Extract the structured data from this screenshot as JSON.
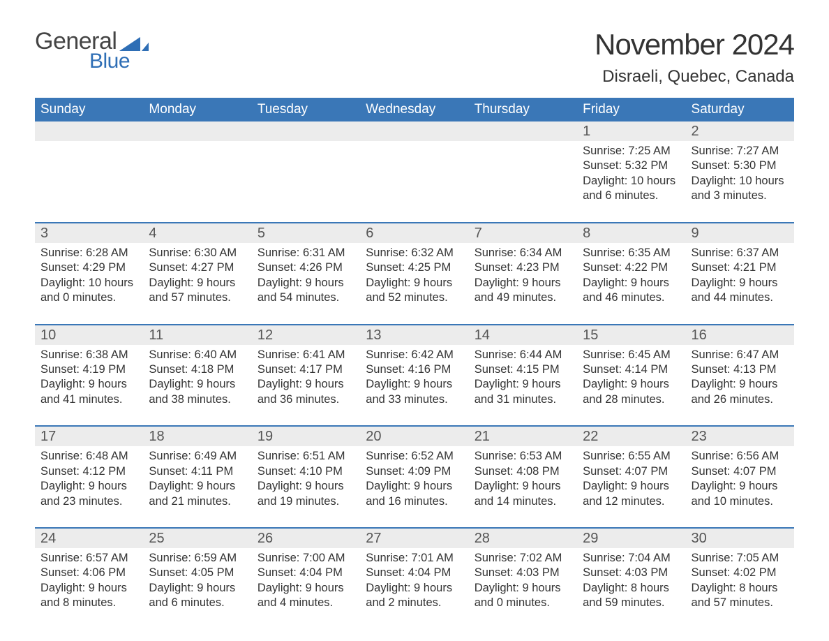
{
  "logo": {
    "word1": "General",
    "word2": "Blue",
    "brand_color": "#2e6eb5"
  },
  "title": "November 2024",
  "location": "Disraeli, Quebec, Canada",
  "colors": {
    "header_bg": "#3a77b7",
    "header_text": "#ffffff",
    "daynum_bg": "#ececec",
    "daynum_text": "#555555",
    "body_text": "#333333",
    "rule": "#3a77b7",
    "page_bg": "#ffffff"
  },
  "typography": {
    "title_fontsize": 42,
    "location_fontsize": 24,
    "dow_fontsize": 19,
    "daynum_fontsize": 20,
    "detail_fontsize": 16.5,
    "font_family": "Arial"
  },
  "days_of_week": [
    "Sunday",
    "Monday",
    "Tuesday",
    "Wednesday",
    "Thursday",
    "Friday",
    "Saturday"
  ],
  "weeks": [
    [
      null,
      null,
      null,
      null,
      null,
      {
        "n": "1",
        "sunrise": "7:25 AM",
        "sunset": "5:32 PM",
        "daylight": "10 hours and 6 minutes."
      },
      {
        "n": "2",
        "sunrise": "7:27 AM",
        "sunset": "5:30 PM",
        "daylight": "10 hours and 3 minutes."
      }
    ],
    [
      {
        "n": "3",
        "sunrise": "6:28 AM",
        "sunset": "4:29 PM",
        "daylight": "10 hours and 0 minutes."
      },
      {
        "n": "4",
        "sunrise": "6:30 AM",
        "sunset": "4:27 PM",
        "daylight": "9 hours and 57 minutes."
      },
      {
        "n": "5",
        "sunrise": "6:31 AM",
        "sunset": "4:26 PM",
        "daylight": "9 hours and 54 minutes."
      },
      {
        "n": "6",
        "sunrise": "6:32 AM",
        "sunset": "4:25 PM",
        "daylight": "9 hours and 52 minutes."
      },
      {
        "n": "7",
        "sunrise": "6:34 AM",
        "sunset": "4:23 PM",
        "daylight": "9 hours and 49 minutes."
      },
      {
        "n": "8",
        "sunrise": "6:35 AM",
        "sunset": "4:22 PM",
        "daylight": "9 hours and 46 minutes."
      },
      {
        "n": "9",
        "sunrise": "6:37 AM",
        "sunset": "4:21 PM",
        "daylight": "9 hours and 44 minutes."
      }
    ],
    [
      {
        "n": "10",
        "sunrise": "6:38 AM",
        "sunset": "4:19 PM",
        "daylight": "9 hours and 41 minutes."
      },
      {
        "n": "11",
        "sunrise": "6:40 AM",
        "sunset": "4:18 PM",
        "daylight": "9 hours and 38 minutes."
      },
      {
        "n": "12",
        "sunrise": "6:41 AM",
        "sunset": "4:17 PM",
        "daylight": "9 hours and 36 minutes."
      },
      {
        "n": "13",
        "sunrise": "6:42 AM",
        "sunset": "4:16 PM",
        "daylight": "9 hours and 33 minutes."
      },
      {
        "n": "14",
        "sunrise": "6:44 AM",
        "sunset": "4:15 PM",
        "daylight": "9 hours and 31 minutes."
      },
      {
        "n": "15",
        "sunrise": "6:45 AM",
        "sunset": "4:14 PM",
        "daylight": "9 hours and 28 minutes."
      },
      {
        "n": "16",
        "sunrise": "6:47 AM",
        "sunset": "4:13 PM",
        "daylight": "9 hours and 26 minutes."
      }
    ],
    [
      {
        "n": "17",
        "sunrise": "6:48 AM",
        "sunset": "4:12 PM",
        "daylight": "9 hours and 23 minutes."
      },
      {
        "n": "18",
        "sunrise": "6:49 AM",
        "sunset": "4:11 PM",
        "daylight": "9 hours and 21 minutes."
      },
      {
        "n": "19",
        "sunrise": "6:51 AM",
        "sunset": "4:10 PM",
        "daylight": "9 hours and 19 minutes."
      },
      {
        "n": "20",
        "sunrise": "6:52 AM",
        "sunset": "4:09 PM",
        "daylight": "9 hours and 16 minutes."
      },
      {
        "n": "21",
        "sunrise": "6:53 AM",
        "sunset": "4:08 PM",
        "daylight": "9 hours and 14 minutes."
      },
      {
        "n": "22",
        "sunrise": "6:55 AM",
        "sunset": "4:07 PM",
        "daylight": "9 hours and 12 minutes."
      },
      {
        "n": "23",
        "sunrise": "6:56 AM",
        "sunset": "4:07 PM",
        "daylight": "9 hours and 10 minutes."
      }
    ],
    [
      {
        "n": "24",
        "sunrise": "6:57 AM",
        "sunset": "4:06 PM",
        "daylight": "9 hours and 8 minutes."
      },
      {
        "n": "25",
        "sunrise": "6:59 AM",
        "sunset": "4:05 PM",
        "daylight": "9 hours and 6 minutes."
      },
      {
        "n": "26",
        "sunrise": "7:00 AM",
        "sunset": "4:04 PM",
        "daylight": "9 hours and 4 minutes."
      },
      {
        "n": "27",
        "sunrise": "7:01 AM",
        "sunset": "4:04 PM",
        "daylight": "9 hours and 2 minutes."
      },
      {
        "n": "28",
        "sunrise": "7:02 AM",
        "sunset": "4:03 PM",
        "daylight": "9 hours and 0 minutes."
      },
      {
        "n": "29",
        "sunrise": "7:04 AM",
        "sunset": "4:03 PM",
        "daylight": "8 hours and 59 minutes."
      },
      {
        "n": "30",
        "sunrise": "7:05 AM",
        "sunset": "4:02 PM",
        "daylight": "8 hours and 57 minutes."
      }
    ]
  ],
  "labels": {
    "sunrise": "Sunrise: ",
    "sunset": "Sunset: ",
    "daylight": "Daylight: "
  }
}
